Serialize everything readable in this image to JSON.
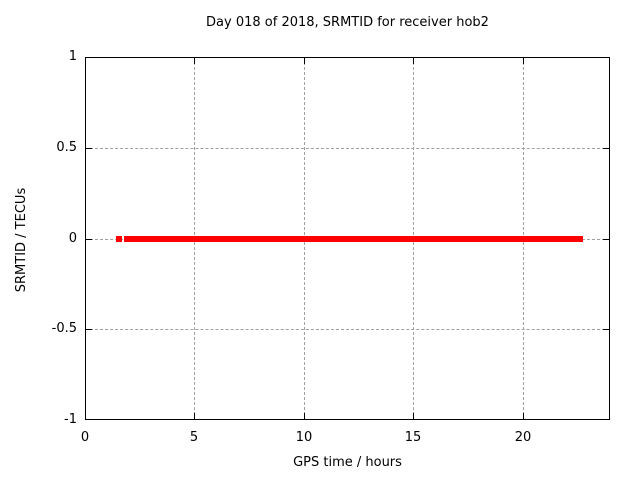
{
  "chart_data": {
    "type": "scatter",
    "title": "Day 018 of 2018, SRMTID for receiver hob2",
    "xlabel": "GPS time / hours",
    "ylabel": "SRMTID / TECUs",
    "xlim": [
      0,
      24
    ],
    "ylim": [
      -1,
      1
    ],
    "grid": true,
    "legend": "none",
    "x_ticks": [
      {
        "v": 0,
        "label": "0"
      },
      {
        "v": 5,
        "label": "5"
      },
      {
        "v": 10,
        "label": "10"
      },
      {
        "v": 15,
        "label": "15"
      },
      {
        "v": 20,
        "label": "20"
      }
    ],
    "y_ticks": [
      {
        "v": 1,
        "label": "1"
      },
      {
        "v": 0.5,
        "label": "0.5"
      },
      {
        "v": 0,
        "label": "0"
      },
      {
        "v": -0.5,
        "label": "-0.5"
      },
      {
        "v": -1,
        "label": "-1"
      }
    ],
    "series": [
      {
        "name": "SRMTID",
        "marker": "filled-square",
        "marker_size_px": 6,
        "color": "#ff0000",
        "y": 0,
        "x_segments": [
          [
            1.4,
            1.65
          ],
          [
            1.8,
            22.77
          ]
        ]
      }
    ],
    "colors": {
      "background": "#ffffff",
      "axis": "#000000",
      "grid": "#a0a0a0",
      "text": "#000000",
      "data": "#ff0000"
    }
  }
}
